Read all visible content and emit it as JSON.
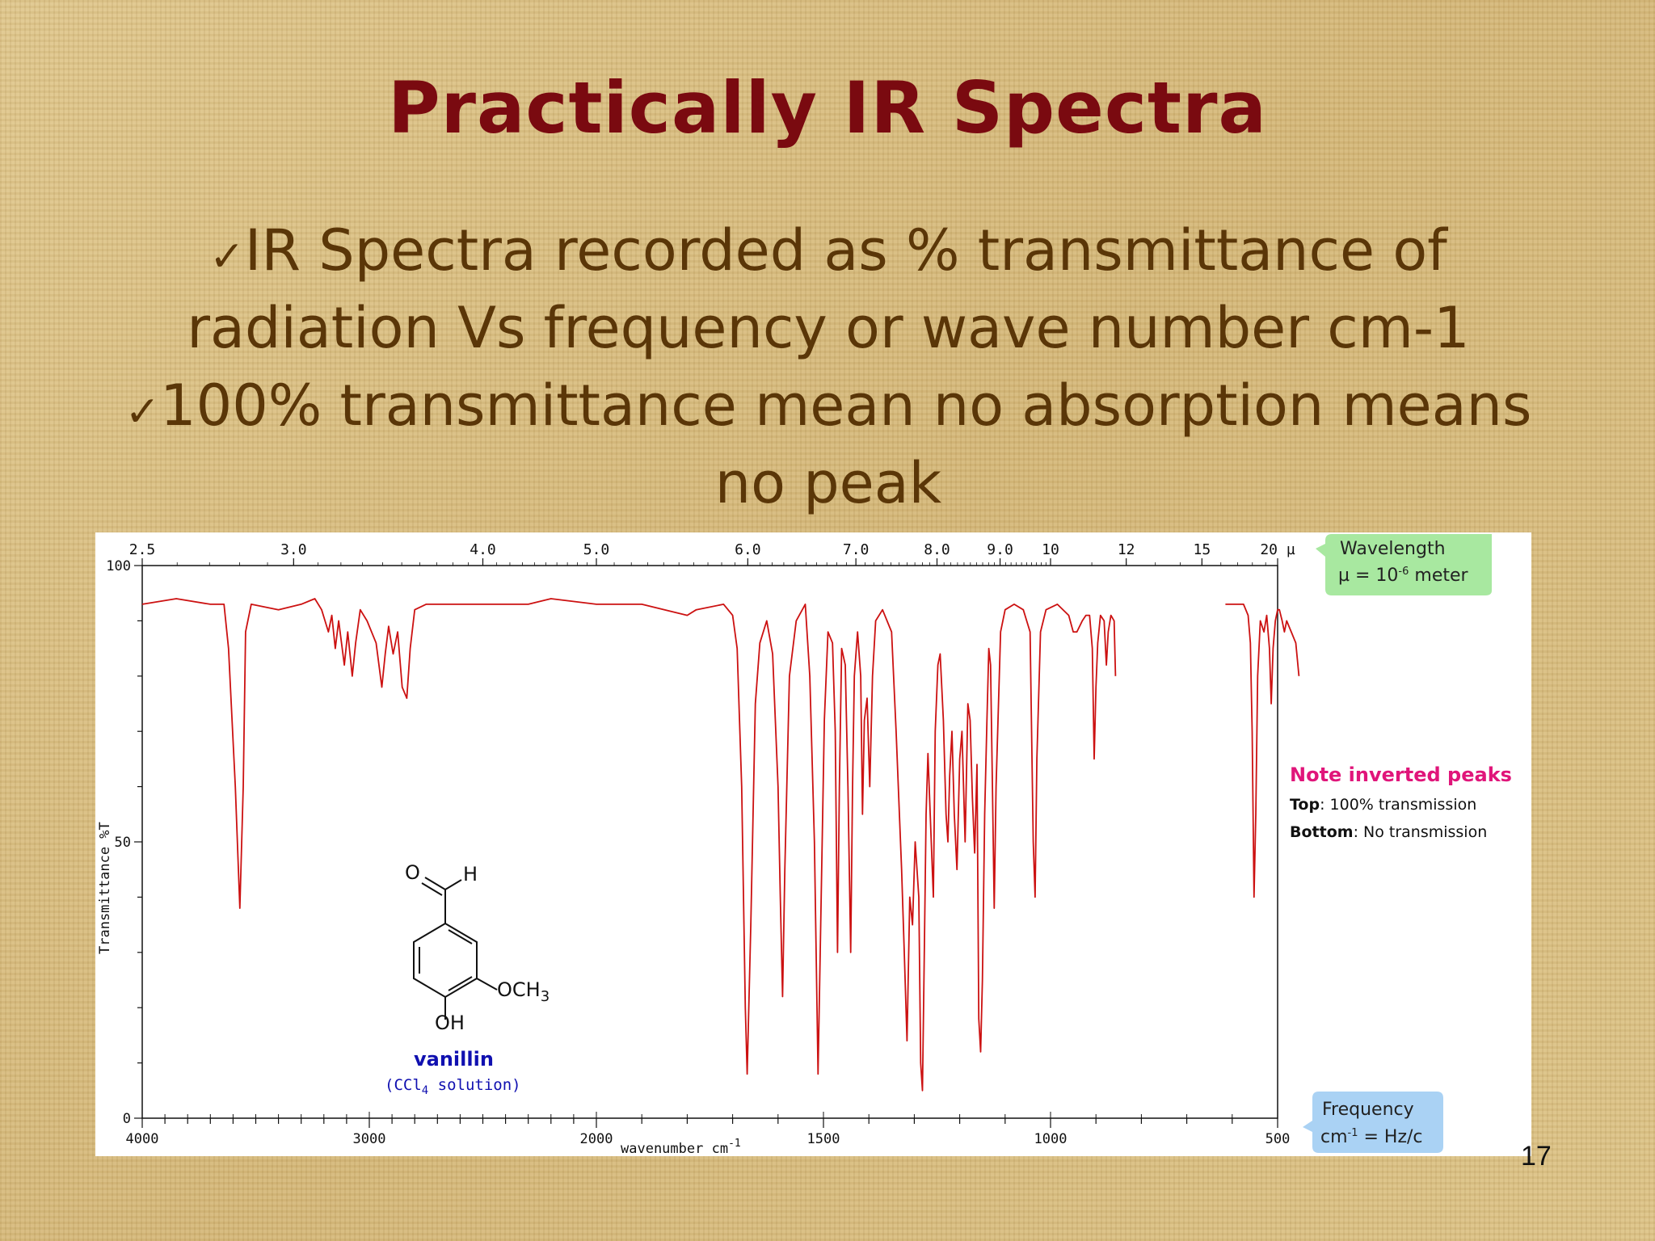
{
  "slide": {
    "title": "Practically IR Spectra",
    "bullets": [
      {
        "check": "✓",
        "lines": [
          "IR Spectra recorded as % transmittance of",
          "radiation Vs  frequency or wave number cm-1"
        ]
      },
      {
        "check": "✓",
        "lines": [
          "100% transmittance mean no absorption means",
          "no peak"
        ]
      }
    ],
    "page_number": "17"
  },
  "chart_data": {
    "type": "line",
    "title": "",
    "xlabel": "wavenumber cm",
    "xlabel_sup": "-1",
    "ylabel": "Transmittance %T",
    "xlim": [
      4000,
      500
    ],
    "ylim": [
      0,
      100
    ],
    "x_ticks": [
      "4000",
      "3000",
      "2000",
      "1500",
      "1000",
      "500"
    ],
    "y_ticks": [
      "100",
      "50",
      "0"
    ],
    "wavelength_ticks": [
      "2.5",
      "3.0",
      "4.0",
      "5.0",
      "6.0",
      "7.0",
      "8.0",
      "9.0",
      "10",
      "12",
      "15",
      "20 µ"
    ],
    "grid": false,
    "line_color": "#cc1111",
    "series": [
      {
        "points": [
          [
            4000,
            93
          ],
          [
            3850,
            94
          ],
          [
            3700,
            93
          ],
          [
            3640,
            93
          ],
          [
            3620,
            85
          ],
          [
            3590,
            60
          ],
          [
            3570,
            38
          ],
          [
            3555,
            60
          ],
          [
            3545,
            88
          ],
          [
            3520,
            93
          ],
          [
            3400,
            92
          ],
          [
            3300,
            93
          ],
          [
            3240,
            94
          ],
          [
            3210,
            92
          ],
          [
            3180,
            88
          ],
          [
            3165,
            91
          ],
          [
            3150,
            85
          ],
          [
            3135,
            90
          ],
          [
            3110,
            82
          ],
          [
            3095,
            88
          ],
          [
            3075,
            80
          ],
          [
            3060,
            86
          ],
          [
            3040,
            92
          ],
          [
            3010,
            90
          ],
          [
            2970,
            86
          ],
          [
            2945,
            78
          ],
          [
            2930,
            84
          ],
          [
            2915,
            89
          ],
          [
            2895,
            84
          ],
          [
            2875,
            88
          ],
          [
            2855,
            78
          ],
          [
            2835,
            76
          ],
          [
            2820,
            85
          ],
          [
            2800,
            92
          ],
          [
            2750,
            93
          ],
          [
            2500,
            93
          ],
          [
            2300,
            93
          ],
          [
            2200,
            94
          ],
          [
            2000,
            93
          ],
          [
            1900,
            93
          ],
          [
            1800,
            91
          ],
          [
            1780,
            92
          ],
          [
            1720,
            93
          ],
          [
            1700,
            91
          ],
          [
            1690,
            85
          ],
          [
            1680,
            60
          ],
          [
            1672,
            20
          ],
          [
            1668,
            8
          ],
          [
            1660,
            35
          ],
          [
            1650,
            75
          ],
          [
            1640,
            86
          ],
          [
            1625,
            90
          ],
          [
            1612,
            84
          ],
          [
            1600,
            60
          ],
          [
            1595,
            40
          ],
          [
            1590,
            22
          ],
          [
            1585,
            45
          ],
          [
            1575,
            80
          ],
          [
            1560,
            90
          ],
          [
            1540,
            93
          ],
          [
            1530,
            80
          ],
          [
            1520,
            50
          ],
          [
            1512,
            8
          ],
          [
            1505,
            40
          ],
          [
            1498,
            72
          ],
          [
            1490,
            88
          ],
          [
            1480,
            86
          ],
          [
            1474,
            70
          ],
          [
            1469,
            30
          ],
          [
            1465,
            60
          ],
          [
            1460,
            85
          ],
          [
            1452,
            82
          ],
          [
            1446,
            60
          ],
          [
            1440,
            30
          ],
          [
            1436,
            60
          ],
          [
            1432,
            80
          ],
          [
            1425,
            88
          ],
          [
            1418,
            80
          ],
          [
            1414,
            55
          ],
          [
            1410,
            72
          ],
          [
            1404,
            76
          ],
          [
            1398,
            60
          ],
          [
            1392,
            80
          ],
          [
            1385,
            90
          ],
          [
            1370,
            92
          ],
          [
            1350,
            88
          ],
          [
            1340,
            70
          ],
          [
            1328,
            45
          ],
          [
            1322,
            30
          ],
          [
            1316,
            14
          ],
          [
            1310,
            40
          ],
          [
            1304,
            35
          ],
          [
            1298,
            50
          ],
          [
            1290,
            40
          ],
          [
            1286,
            10
          ],
          [
            1282,
            5
          ],
          [
            1278,
            30
          ],
          [
            1274,
            55
          ],
          [
            1270,
            66
          ],
          [
            1265,
            55
          ],
          [
            1258,
            40
          ],
          [
            1254,
            70
          ],
          [
            1248,
            82
          ],
          [
            1243,
            84
          ],
          [
            1236,
            72
          ],
          [
            1230,
            55
          ],
          [
            1226,
            50
          ],
          [
            1222,
            62
          ],
          [
            1217,
            70
          ],
          [
            1212,
            55
          ],
          [
            1206,
            45
          ],
          [
            1200,
            65
          ],
          [
            1195,
            70
          ],
          [
            1188,
            50
          ],
          [
            1182,
            75
          ],
          [
            1177,
            72
          ],
          [
            1172,
            58
          ],
          [
            1167,
            48
          ],
          [
            1162,
            64
          ],
          [
            1158,
            18
          ],
          [
            1154,
            12
          ],
          [
            1150,
            25
          ],
          [
            1145,
            55
          ],
          [
            1140,
            72
          ],
          [
            1136,
            85
          ],
          [
            1132,
            82
          ],
          [
            1128,
            60
          ],
          [
            1124,
            38
          ],
          [
            1120,
            60
          ],
          [
            1110,
            88
          ],
          [
            1100,
            92
          ],
          [
            1080,
            93
          ],
          [
            1060,
            92
          ],
          [
            1045,
            88
          ],
          [
            1038,
            50
          ],
          [
            1034,
            40
          ],
          [
            1030,
            65
          ],
          [
            1022,
            88
          ],
          [
            1010,
            92
          ],
          [
            985,
            93
          ],
          [
            960,
            91
          ],
          [
            950,
            88
          ],
          [
            942,
            88
          ],
          [
            930,
            90
          ],
          [
            922,
            91
          ],
          [
            914,
            91
          ],
          [
            908,
            85
          ],
          [
            904,
            65
          ],
          [
            900,
            78
          ],
          [
            896,
            86
          ],
          [
            890,
            91
          ],
          [
            882,
            90
          ],
          [
            877,
            82
          ],
          [
            873,
            88
          ],
          [
            867,
            91
          ],
          [
            860,
            90
          ],
          [
            857,
            80
          ]
        ]
      },
      {
        "points": [
          [
            615,
            93
          ],
          [
            575,
            93
          ],
          [
            565,
            91
          ],
          [
            560,
            86
          ],
          [
            556,
            70
          ],
          [
            552,
            40
          ],
          [
            548,
            55
          ],
          [
            544,
            80
          ],
          [
            538,
            90
          ],
          [
            530,
            88
          ],
          [
            524,
            91
          ],
          [
            518,
            85
          ],
          [
            514,
            75
          ],
          [
            510,
            85
          ],
          [
            505,
            90
          ],
          [
            500,
            92
          ],
          [
            496,
            92
          ],
          [
            490,
            90
          ],
          [
            485,
            88
          ],
          [
            480,
            90
          ],
          [
            470,
            88
          ],
          [
            460,
            86
          ],
          [
            453,
            80
          ]
        ]
      }
    ],
    "annotations": {
      "wavelength_box": {
        "line1": "Wavelength",
        "line2": "µ = 10",
        "line2_sup": "-6",
        "line2_end": " meter",
        "color": "#a8e8a0"
      },
      "frequency_box": {
        "line1": "Frequency",
        "line2": "cm",
        "line2_sup": "-1",
        "line2_end": " = Hz/c",
        "color": "#aad2f4"
      },
      "note": {
        "title": "Note inverted peaks",
        "title_color": "#e0157a",
        "top_label": "Top",
        "top_text": ": 100% transmission",
        "bottom_label": "Bottom",
        "bottom_text": ": No transmission"
      },
      "molecule": {
        "name": "vanillin",
        "name_color": "#1010b0",
        "solvent": "(CCl",
        "solvent_sub": "4",
        "solvent_end": " solution)",
        "labels": {
          "o": "O",
          "h": "H",
          "och3": "OCH",
          "och3_sub": "3",
          "oh": "OH"
        }
      }
    }
  }
}
